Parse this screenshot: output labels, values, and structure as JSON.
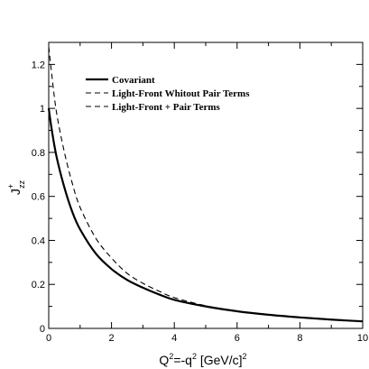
{
  "chart_data": {
    "type": "line",
    "xlabel": {
      "base": "Q",
      "sup1": "2",
      "mid": "=-q",
      "sup2": "2",
      "rest": " [GeV/c]",
      "sup3": "2"
    },
    "ylabel": {
      "base": "J",
      "sup": "+",
      "sub": "zz"
    },
    "xlim": [
      0,
      10
    ],
    "ylim": [
      0,
      1.3
    ],
    "x_ticks": [
      0,
      2,
      4,
      6,
      8,
      10
    ],
    "y_ticks": [
      0,
      0.2,
      0.4,
      0.6,
      0.8,
      1,
      1.2
    ],
    "x_tick_labels": [
      "0",
      "2",
      "4",
      "6",
      "8",
      "10"
    ],
    "y_tick_labels": [
      "0",
      "0.2",
      "0.4",
      "0.6",
      "0.8",
      "1",
      "1.2"
    ],
    "grid": false,
    "legend_position": "top-center",
    "series": [
      {
        "name": "Covariant",
        "style": "solid",
        "color": "#000000",
        "x": [
          0,
          0.1,
          0.25,
          0.5,
          0.75,
          1,
          1.5,
          2,
          2.5,
          3,
          3.5,
          4,
          5,
          6,
          7,
          8,
          9,
          10
        ],
        "y": [
          1.0,
          0.9,
          0.78,
          0.64,
          0.53,
          0.45,
          0.34,
          0.27,
          0.22,
          0.185,
          0.155,
          0.13,
          0.1,
          0.078,
          0.062,
          0.05,
          0.04,
          0.032
        ]
      },
      {
        "name": "Light-Front Whitout Pair Terms",
        "style": "dashed",
        "color": "#000000",
        "x": [
          0,
          0.1,
          0.25,
          0.5,
          0.75,
          1,
          1.5,
          2,
          2.5,
          3,
          3.5,
          4,
          5,
          6,
          7,
          8,
          9,
          10
        ],
        "y": [
          1.28,
          1.15,
          0.98,
          0.8,
          0.66,
          0.55,
          0.41,
          0.32,
          0.25,
          0.205,
          0.17,
          0.14,
          0.103,
          0.079,
          0.062,
          0.05,
          0.04,
          0.032
        ]
      },
      {
        "name": "Light-Front + Pair Terms",
        "style": "dashed",
        "color": "#000000",
        "x": [
          0,
          0.1,
          0.25,
          0.5,
          0.75,
          1,
          1.5,
          2,
          2.5,
          3,
          3.5,
          4,
          5,
          6,
          7,
          8,
          9,
          10
        ],
        "y": [
          1.0,
          0.9,
          0.78,
          0.64,
          0.53,
          0.45,
          0.34,
          0.27,
          0.22,
          0.185,
          0.155,
          0.13,
          0.1,
          0.078,
          0.062,
          0.05,
          0.04,
          0.032
        ]
      }
    ]
  }
}
